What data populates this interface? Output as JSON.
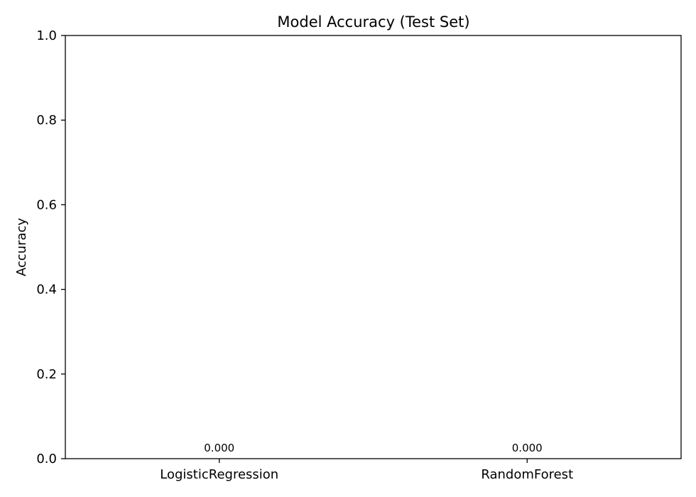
{
  "chart_data": {
    "type": "bar",
    "title": "Model Accuracy (Test Set)",
    "xlabel": "",
    "ylabel": "Accuracy",
    "categories": [
      "LogisticRegression",
      "RandomForest"
    ],
    "values": [
      0.0,
      0.0
    ],
    "value_labels": [
      "0.000",
      "0.000"
    ],
    "ylim": [
      0,
      1.0
    ],
    "yticks": [
      0.0,
      0.2,
      0.4,
      0.6,
      0.8,
      1.0
    ],
    "ytick_labels": [
      "0.0",
      "0.2",
      "0.4",
      "0.6",
      "0.8",
      "1.0"
    ],
    "bar_color": "#1f77b4",
    "grid": false,
    "legend": "none"
  }
}
